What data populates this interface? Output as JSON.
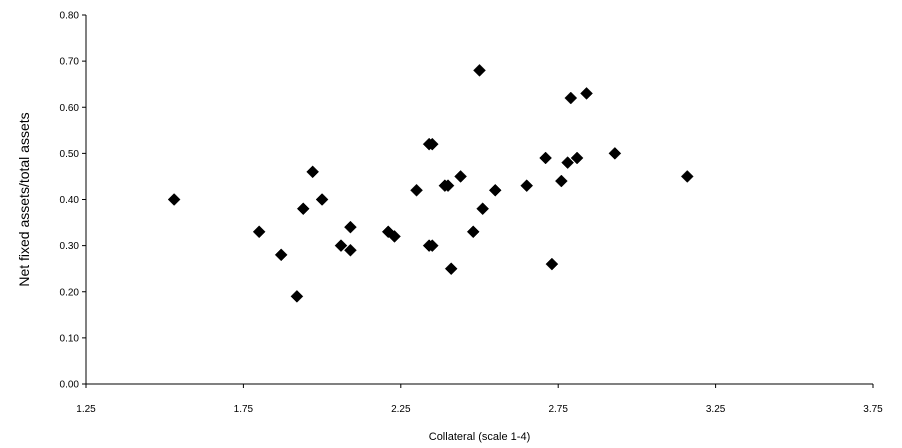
{
  "chart_data": {
    "type": "scatter",
    "title": "",
    "xlabel": "Collateral (scale 1-4)",
    "ylabel": "Net fixed assets/total assets",
    "xlim": [
      1.25,
      3.75
    ],
    "ylim": [
      0.0,
      0.8
    ],
    "x_ticks": [
      "1.25",
      "1.75",
      "2.25",
      "2.75",
      "3.25",
      "3.75"
    ],
    "y_ticks": [
      "0.00",
      "0.10",
      "0.20",
      "0.30",
      "0.40",
      "0.50",
      "0.60",
      "0.70",
      "0.80"
    ],
    "grid": false,
    "legend": "none",
    "marker_color": "#000000",
    "marker": "diamond",
    "points": [
      {
        "x": 1.53,
        "y": 0.4
      },
      {
        "x": 1.8,
        "y": 0.33
      },
      {
        "x": 1.87,
        "y": 0.28
      },
      {
        "x": 1.92,
        "y": 0.19
      },
      {
        "x": 1.94,
        "y": 0.38
      },
      {
        "x": 1.97,
        "y": 0.46
      },
      {
        "x": 2.0,
        "y": 0.4
      },
      {
        "x": 2.06,
        "y": 0.3
      },
      {
        "x": 2.09,
        "y": 0.34
      },
      {
        "x": 2.09,
        "y": 0.29
      },
      {
        "x": 2.21,
        "y": 0.33
      },
      {
        "x": 2.23,
        "y": 0.32
      },
      {
        "x": 2.3,
        "y": 0.42
      },
      {
        "x": 2.34,
        "y": 0.52
      },
      {
        "x": 2.35,
        "y": 0.52
      },
      {
        "x": 2.34,
        "y": 0.3
      },
      {
        "x": 2.35,
        "y": 0.3
      },
      {
        "x": 2.39,
        "y": 0.43
      },
      {
        "x": 2.4,
        "y": 0.43
      },
      {
        "x": 2.41,
        "y": 0.25
      },
      {
        "x": 2.44,
        "y": 0.45
      },
      {
        "x": 2.48,
        "y": 0.33
      },
      {
        "x": 2.5,
        "y": 0.68
      },
      {
        "x": 2.51,
        "y": 0.38
      },
      {
        "x": 2.55,
        "y": 0.42
      },
      {
        "x": 2.65,
        "y": 0.43
      },
      {
        "x": 2.71,
        "y": 0.49
      },
      {
        "x": 2.73,
        "y": 0.26
      },
      {
        "x": 2.76,
        "y": 0.44
      },
      {
        "x": 2.78,
        "y": 0.48
      },
      {
        "x": 2.79,
        "y": 0.62
      },
      {
        "x": 2.81,
        "y": 0.49
      },
      {
        "x": 2.84,
        "y": 0.63
      },
      {
        "x": 2.93,
        "y": 0.5
      },
      {
        "x": 3.16,
        "y": 0.45
      }
    ]
  }
}
